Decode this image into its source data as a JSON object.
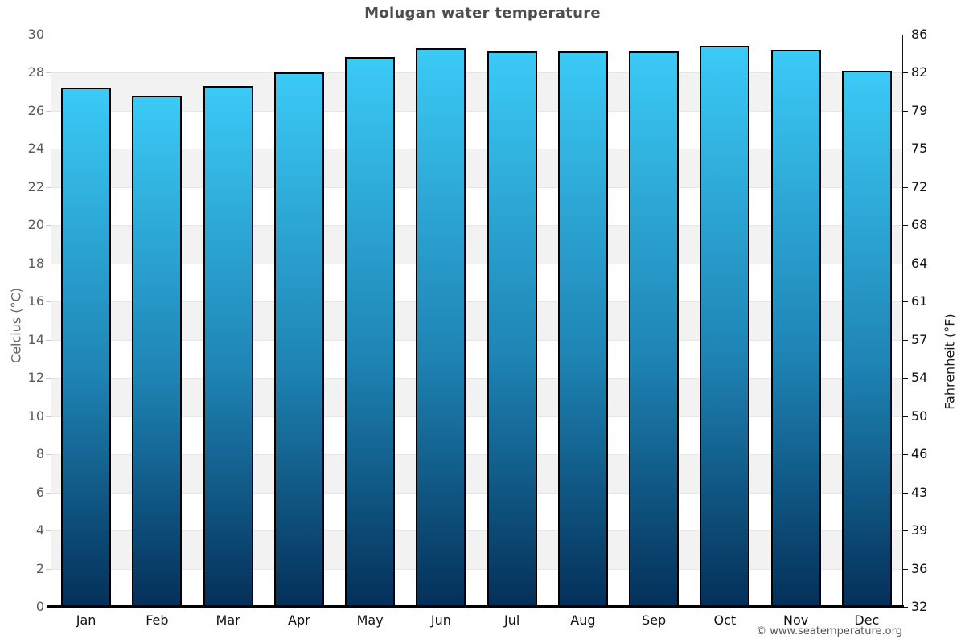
{
  "header": {
    "title": "Molugan water temperature"
  },
  "footer": {
    "credit": "© www.seatemperature.org"
  },
  "axes": {
    "left_title": "Celcius (°C)",
    "right_title": "Fahrenheit (°F)"
  },
  "chart_data": {
    "type": "bar",
    "title": "Molugan water temperature",
    "categories": [
      "Jan",
      "Feb",
      "Mar",
      "Apr",
      "May",
      "Jun",
      "Jul",
      "Aug",
      "Sep",
      "Oct",
      "Nov",
      "Dec"
    ],
    "values": [
      27.2,
      26.8,
      27.3,
      28.0,
      28.8,
      29.3,
      29.1,
      29.1,
      29.1,
      29.4,
      29.2,
      28.1
    ],
    "xlabel": "",
    "ylabel": "Celcius (°C)",
    "ylabel_right": "Fahrenheit (°F)",
    "ylim": [
      0,
      30
    ],
    "left_ticks": [
      30,
      28,
      26,
      24,
      22,
      20,
      18,
      16,
      14,
      12,
      10,
      8,
      6,
      4,
      2,
      0
    ],
    "right_tick_labels": [
      "86",
      "82",
      "79",
      "75",
      "72",
      "68",
      "64",
      "61",
      "57",
      "54",
      "50",
      "46",
      "43",
      "39",
      "36",
      "32"
    ],
    "legend": "none",
    "grid": "alternating horizontal bands every 2 degrees C",
    "colors": {
      "bar_gradient_top": "#3bcaf6",
      "bar_gradient_mid": "#1e84b4",
      "bar_gradient_bottom": "#043059",
      "bar_border": "#000000",
      "band_main": "#ffffff",
      "band_alt": "#f2f2f2",
      "gridline": "#e6e6e6",
      "title_text": "#4d4d4d",
      "left_axis_text": "#5a5a5a",
      "right_axis_text": "#111111"
    }
  }
}
